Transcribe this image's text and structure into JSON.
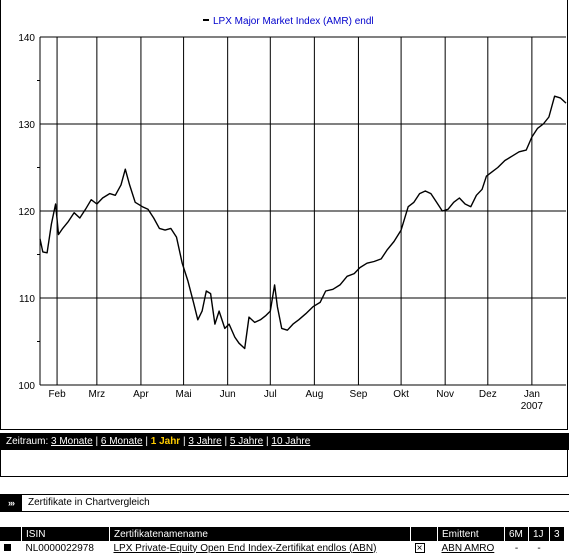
{
  "chart_data": {
    "type": "line",
    "title": "LPX Major Market Index (AMR) endl",
    "legend_position": "top-center",
    "grid": true,
    "ylim": [
      100,
      140
    ],
    "yticks": [
      "100",
      "110",
      "120",
      "130",
      "140"
    ],
    "xlim": [
      "2006-01-20",
      "2007-01-25"
    ],
    "xticks": [
      {
        "label": "Feb",
        "date": "2006-02-01"
      },
      {
        "label": "Mrz",
        "date": "2006-03-01"
      },
      {
        "label": "Apr",
        "date": "2006-04-01"
      },
      {
        "label": "Mai",
        "date": "2006-05-01"
      },
      {
        "label": "Jun",
        "date": "2006-06-01"
      },
      {
        "label": "Jul",
        "date": "2006-07-01"
      },
      {
        "label": "Aug",
        "date": "2006-08-01"
      },
      {
        "label": "Sep",
        "date": "2006-09-01"
      },
      {
        "label": "Okt",
        "date": "2006-10-01"
      },
      {
        "label": "Nov",
        "date": "2006-11-01"
      },
      {
        "label": "Dez",
        "date": "2006-12-01"
      },
      {
        "label": "Jan",
        "date": "2007-01-01"
      }
    ],
    "year_label": "2007",
    "series": [
      {
        "name": "LPX Major Market Index (AMR) endl",
        "color": "#000000",
        "points": [
          [
            "2006-01-20",
            116.8
          ],
          [
            "2006-01-22",
            115.3
          ],
          [
            "2006-01-25",
            115.2
          ],
          [
            "2006-01-28",
            118.5
          ],
          [
            "2006-01-31",
            120.8
          ],
          [
            "2006-02-02",
            117.3
          ],
          [
            "2006-02-05",
            118.0
          ],
          [
            "2006-02-09",
            118.8
          ],
          [
            "2006-02-13",
            119.8
          ],
          [
            "2006-02-17",
            119.2
          ],
          [
            "2006-02-21",
            120.2
          ],
          [
            "2006-02-25",
            121.3
          ],
          [
            "2006-03-01",
            120.8
          ],
          [
            "2006-03-05",
            121.5
          ],
          [
            "2006-03-10",
            122.0
          ],
          [
            "2006-03-14",
            121.8
          ],
          [
            "2006-03-18",
            123.0
          ],
          [
            "2006-03-21",
            124.8
          ],
          [
            "2006-03-24",
            123.0
          ],
          [
            "2006-03-28",
            121.0
          ],
          [
            "2006-04-02",
            120.5
          ],
          [
            "2006-04-06",
            120.2
          ],
          [
            "2006-04-10",
            119.2
          ],
          [
            "2006-04-14",
            118.0
          ],
          [
            "2006-04-18",
            117.8
          ],
          [
            "2006-04-22",
            118.0
          ],
          [
            "2006-04-26",
            117.0
          ],
          [
            "2006-04-30",
            114.0
          ],
          [
            "2006-05-04",
            112.0
          ],
          [
            "2006-05-08",
            109.5
          ],
          [
            "2006-05-11",
            107.5
          ],
          [
            "2006-05-14",
            108.5
          ],
          [
            "2006-05-17",
            110.8
          ],
          [
            "2006-05-20",
            110.5
          ],
          [
            "2006-05-23",
            107.0
          ],
          [
            "2006-05-26",
            108.5
          ],
          [
            "2006-05-30",
            106.5
          ],
          [
            "2006-06-02",
            107.0
          ],
          [
            "2006-06-06",
            105.5
          ],
          [
            "2006-06-09",
            104.8
          ],
          [
            "2006-06-13",
            104.2
          ],
          [
            "2006-06-16",
            107.8
          ],
          [
            "2006-06-20",
            107.2
          ],
          [
            "2006-06-24",
            107.5
          ],
          [
            "2006-06-28",
            108.0
          ],
          [
            "2006-07-01",
            108.5
          ],
          [
            "2006-07-04",
            111.5
          ],
          [
            "2006-07-06",
            109.0
          ],
          [
            "2006-07-09",
            106.5
          ],
          [
            "2006-07-13",
            106.3
          ],
          [
            "2006-07-17",
            107.0
          ],
          [
            "2006-07-21",
            107.5
          ],
          [
            "2006-07-26",
            108.2
          ],
          [
            "2006-07-31",
            109.0
          ],
          [
            "2006-08-05",
            109.5
          ],
          [
            "2006-08-09",
            110.8
          ],
          [
            "2006-08-14",
            111.0
          ],
          [
            "2006-08-19",
            111.5
          ],
          [
            "2006-08-24",
            112.5
          ],
          [
            "2006-08-29",
            112.8
          ],
          [
            "2006-09-02",
            113.5
          ],
          [
            "2006-09-07",
            114.0
          ],
          [
            "2006-09-12",
            114.2
          ],
          [
            "2006-09-17",
            114.5
          ],
          [
            "2006-09-21",
            115.5
          ],
          [
            "2006-09-26",
            116.5
          ],
          [
            "2006-10-01",
            117.8
          ],
          [
            "2006-10-06",
            120.5
          ],
          [
            "2006-10-10",
            121.0
          ],
          [
            "2006-10-14",
            122.0
          ],
          [
            "2006-10-18",
            122.3
          ],
          [
            "2006-10-22",
            122.0
          ],
          [
            "2006-10-26",
            121.0
          ],
          [
            "2006-10-30",
            120.0
          ],
          [
            "2006-11-03",
            120.2
          ],
          [
            "2006-11-07",
            121.0
          ],
          [
            "2006-11-11",
            121.5
          ],
          [
            "2006-11-15",
            120.8
          ],
          [
            "2006-11-19",
            120.5
          ],
          [
            "2006-11-23",
            121.8
          ],
          [
            "2006-11-27",
            122.5
          ],
          [
            "2006-11-30",
            124.0
          ],
          [
            "2006-12-04",
            124.5
          ],
          [
            "2006-12-08",
            125.0
          ],
          [
            "2006-12-13",
            125.8
          ],
          [
            "2006-12-18",
            126.3
          ],
          [
            "2006-12-23",
            126.8
          ],
          [
            "2006-12-28",
            127.0
          ],
          [
            "2007-01-01",
            128.5
          ],
          [
            "2007-01-05",
            129.5
          ],
          [
            "2007-01-09",
            130.0
          ],
          [
            "2007-01-13",
            130.8
          ],
          [
            "2007-01-17",
            133.2
          ],
          [
            "2007-01-21",
            133.0
          ],
          [
            "2007-01-25",
            132.4
          ]
        ]
      }
    ]
  },
  "zeitraum": {
    "label": "Zeitraum:",
    "options": [
      "3 Monate",
      "6 Monate",
      "1 Jahr",
      "3 Jahre",
      "5 Jahre",
      "10 Jahre"
    ],
    "active": "1 Jahr"
  },
  "compare_section": {
    "arrows": "›››",
    "title": "Zertifikate in Chartvergleich"
  },
  "table": {
    "headers": [
      "",
      "ISIN",
      "Zertifikatenamename",
      "",
      "Emittent",
      "6M",
      "1J",
      "3"
    ],
    "rows": [
      {
        "isin": "NL0000022978",
        "name": "LPX Private-Equity Open End Index-Zertifikat endlos (ABN)",
        "remove": "×",
        "emittent": "ABN AMRO",
        "m6": "-",
        "j1": "-"
      }
    ]
  }
}
